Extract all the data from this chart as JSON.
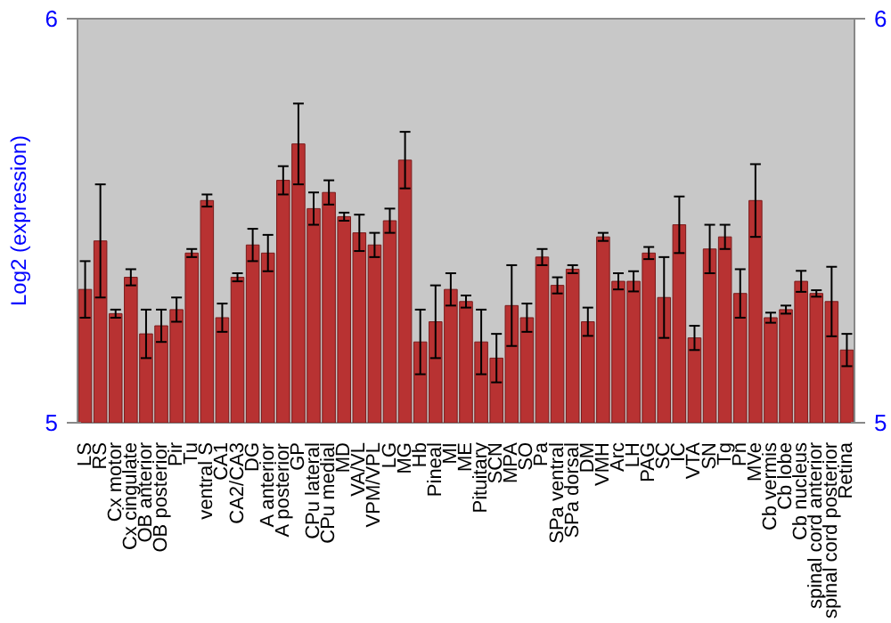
{
  "chart_data": {
    "type": "bar",
    "ylabel": "Log2 (expression)",
    "categories": [
      "LS",
      "RS",
      "Cx motor",
      "Cx cingulate",
      "OB anterior",
      "OB posterior",
      "Pir",
      "Tu",
      "ventral S",
      "CA1",
      "CA2/CA3",
      "DG",
      "A anterior",
      "A posterior",
      "GP",
      "CPu lateral",
      "CPu medial",
      "MD",
      "VA/VL",
      "VPM/VPL",
      "LG",
      "MG",
      "Hb",
      "Pineal",
      "MI",
      "ME",
      "Pituitary",
      "SCN",
      "MPA",
      "SO",
      "Pa",
      "SPa ventral",
      "SPa dorsal",
      "DM",
      "VMH",
      "Arc",
      "LH",
      "PAG",
      "SC",
      "IC",
      "VTA",
      "SN",
      "Tg",
      "Pn",
      "MVe",
      "Cb vermis",
      "Cb lobe",
      "Cb nucleus",
      "spinal cord anterior",
      "spinal cord posterior",
      "Retina"
    ],
    "values": [
      5.33,
      5.45,
      5.27,
      5.36,
      5.22,
      5.24,
      5.28,
      5.42,
      5.55,
      5.26,
      5.36,
      5.44,
      5.42,
      5.6,
      5.69,
      5.53,
      5.57,
      5.51,
      5.47,
      5.44,
      5.5,
      5.65,
      5.2,
      5.25,
      5.33,
      5.3,
      5.2,
      5.16,
      5.29,
      5.26,
      5.41,
      5.34,
      5.38,
      5.25,
      5.46,
      5.35,
      5.35,
      5.42,
      5.31,
      5.49,
      5.21,
      5.43,
      5.46,
      5.32,
      5.55,
      5.26,
      5.28,
      5.35,
      5.32,
      5.3,
      5.18
    ],
    "errors": [
      0.07,
      0.14,
      0.01,
      0.02,
      0.06,
      0.04,
      0.03,
      0.01,
      0.015,
      0.035,
      0.01,
      0.04,
      0.045,
      0.035,
      0.1,
      0.04,
      0.03,
      0.01,
      0.045,
      0.03,
      0.03,
      0.07,
      0.08,
      0.09,
      0.04,
      0.015,
      0.08,
      0.06,
      0.1,
      0.035,
      0.02,
      0.02,
      0.01,
      0.035,
      0.01,
      0.02,
      0.025,
      0.015,
      0.1,
      0.07,
      0.03,
      0.06,
      0.03,
      0.06,
      0.09,
      0.0125,
      0.01,
      0.026,
      0.008,
      0.086,
      0.04
    ],
    "color": "#b83232",
    "ylim": [
      5,
      6
    ],
    "yticks": [
      5,
      6
    ],
    "y2lim": [
      5,
      6
    ],
    "y2ticks": [
      5,
      6
    ],
    "grid": false
  }
}
